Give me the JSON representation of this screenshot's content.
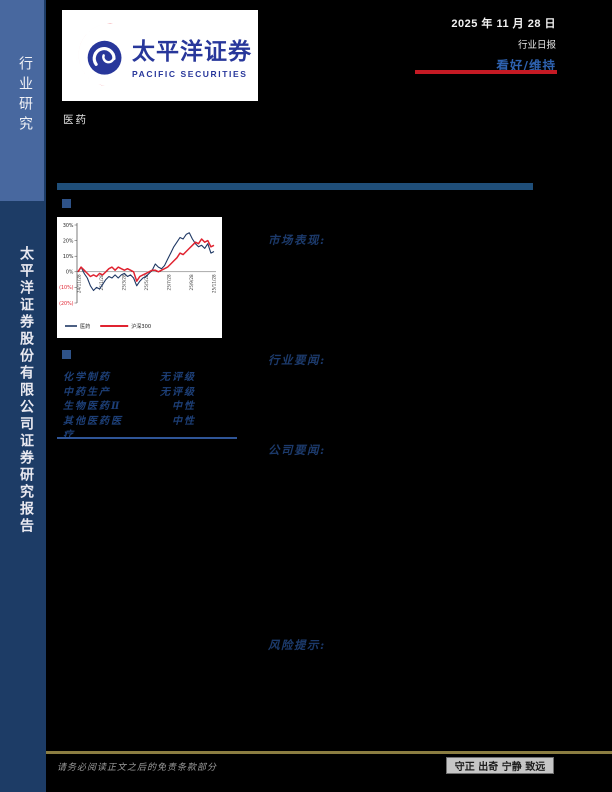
{
  "colors": {
    "page_bg": "#000000",
    "sidebar_navy": "#1d3c66",
    "sidebar_light": "#48689f",
    "brand_blue": "#28379b",
    "brand_red": "#e31c28",
    "rating_blue": "#2e62b0",
    "accent_red": "#c51a24",
    "divider_blue": "#1f4e79",
    "bullet_blue": "#2e5288",
    "heading_blue": "#1c3a6b",
    "table_blue": "#1d3f77",
    "gold_line": "#8b7d41",
    "gray_text": "#9b9b9b",
    "motto_bg": "#c6c6c6"
  },
  "sidebar": {
    "top_label": "行业研究",
    "bottom_label": "太平洋证券股份有限公司证券研究报告"
  },
  "header": {
    "logo_cn": "太平洋证券",
    "logo_en": "PACIFIC SECURITIES",
    "date": "2025 年 11 月 28 日",
    "report_type": "行业日报",
    "rating": "看好/维持"
  },
  "industry_label": "医药",
  "sections": {
    "market": "市场表现:",
    "industry_news": "行业要闻:",
    "company_news": "公司要闻:",
    "risk": "风险提示:"
  },
  "ratings_table": {
    "rows": [
      {
        "name": "化学制药",
        "rating": "无评级"
      },
      {
        "name": "中药生产",
        "rating": "无评级"
      },
      {
        "name": "生物医药Ⅱ",
        "rating": "中性"
      },
      {
        "name": "其他医药医疗",
        "rating": "中性"
      }
    ]
  },
  "footer": {
    "disclaimer": "请务必阅读正文之后的免责条款部分",
    "motto": "守正 出奇 宁静 致远"
  },
  "chart_data": {
    "type": "line",
    "title": "",
    "xlabel": "",
    "ylabel": "",
    "ylim": [
      -20,
      30
    ],
    "yticks": [
      "30%",
      "20%",
      "10%",
      "0%",
      "(10%)",
      "(20%)"
    ],
    "ytick_values": [
      30,
      20,
      10,
      0,
      -10,
      -20
    ],
    "negative_tick_color": "#e02330",
    "grid": false,
    "legend_position": "bottom",
    "xticklabels": [
      "24/11/28",
      "25/1/28",
      "25/3/28",
      "25/5/28",
      "25/7/28",
      "25/9/28",
      "25/11/28"
    ],
    "series": [
      {
        "name": "医药",
        "color": "#1f3864",
        "line_width": 1.1,
        "values": [
          0,
          3,
          -1,
          -4,
          -9,
          -12,
          -10,
          -11,
          -8,
          -5,
          -3,
          -4,
          -2,
          -4,
          -2,
          -1,
          -3,
          -2,
          -4,
          -9,
          -6,
          -4,
          -3,
          -1,
          1,
          5,
          3,
          2,
          4,
          8,
          12,
          16,
          19,
          22,
          21,
          24,
          25,
          21,
          18,
          16,
          17,
          15,
          18,
          12,
          13
        ]
      },
      {
        "name": "沪深300",
        "color": "#e02330",
        "line_width": 1.5,
        "values": [
          0,
          3,
          1,
          -1,
          -3,
          -2,
          -3,
          -1,
          -2,
          0,
          2,
          3,
          1,
          3,
          2,
          1,
          2,
          1,
          0,
          -6,
          -3,
          -2,
          -1,
          0,
          1,
          1,
          0,
          1,
          2,
          3,
          5,
          7,
          9,
          12,
          11,
          13,
          15,
          17,
          19,
          18,
          21,
          19,
          20,
          16,
          17
        ]
      }
    ]
  }
}
